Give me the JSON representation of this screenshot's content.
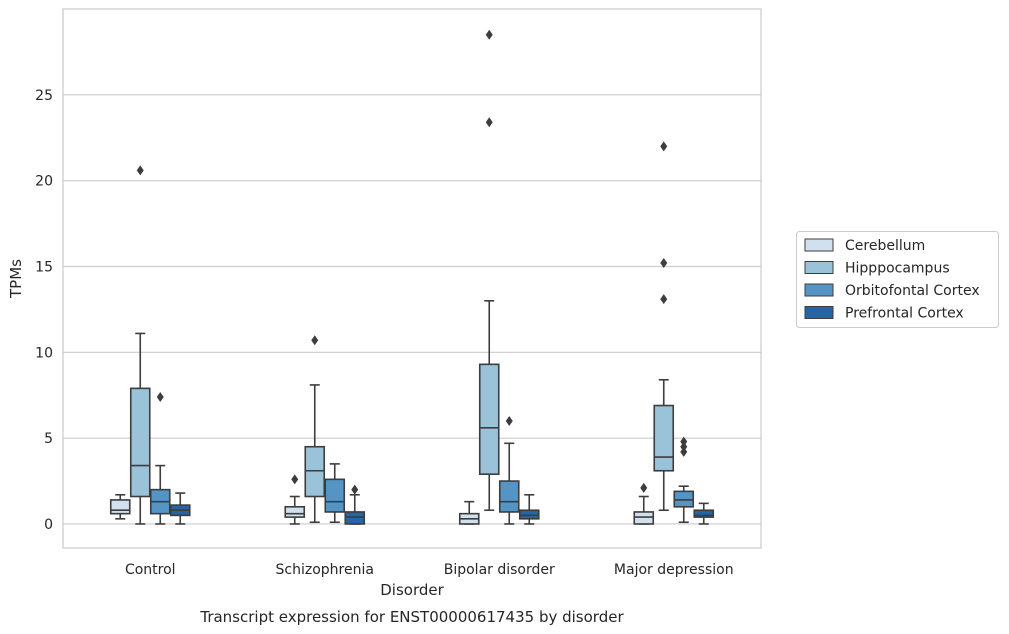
{
  "chart_data": {
    "type": "boxplot",
    "title": "Transcript expression for ENST00000617435 by disorder",
    "xlabel": "Disorder",
    "ylabel": "TPMs",
    "ylim": [
      -1.4,
      30.0
    ],
    "yticks": [
      0,
      5,
      10,
      15,
      20,
      25
    ],
    "grid": "horizontal",
    "legend_position": "right",
    "categories": [
      "Control",
      "Schizophrenia",
      "Bipolar disorder",
      "Major depression"
    ],
    "series": [
      {
        "name": "Cerebellum",
        "color": "#d1e0ee",
        "boxes": [
          {
            "whislo": 0.3,
            "q1": 0.6,
            "med": 0.8,
            "q3": 1.4,
            "whishi": 1.7,
            "fliers": []
          },
          {
            "whislo": 0.0,
            "q1": 0.4,
            "med": 0.6,
            "q3": 1.0,
            "whishi": 1.6,
            "fliers": [
              2.6
            ]
          },
          {
            "whislo": 0.0,
            "q1": 0.0,
            "med": 0.3,
            "q3": 0.6,
            "whishi": 1.3,
            "fliers": []
          },
          {
            "whislo": 0.0,
            "q1": 0.0,
            "med": 0.4,
            "q3": 0.7,
            "whishi": 1.6,
            "fliers": [
              2.1
            ]
          }
        ]
      },
      {
        "name": "Hipppocampus",
        "color": "#9ac2d9",
        "boxes": [
          {
            "whislo": 0.0,
            "q1": 1.6,
            "med": 3.4,
            "q3": 7.9,
            "whishi": 11.1,
            "fliers": [
              20.6
            ]
          },
          {
            "whislo": 0.1,
            "q1": 1.6,
            "med": 3.1,
            "q3": 4.5,
            "whishi": 8.1,
            "fliers": [
              10.7
            ]
          },
          {
            "whislo": 0.8,
            "q1": 2.9,
            "med": 5.6,
            "q3": 9.3,
            "whishi": 13.0,
            "fliers": [
              23.4,
              28.5
            ]
          },
          {
            "whislo": 0.8,
            "q1": 3.1,
            "med": 3.9,
            "q3": 6.9,
            "whishi": 8.4,
            "fliers": [
              13.1,
              15.2,
              22.0
            ]
          }
        ]
      },
      {
        "name": "Orbitofontal Cortex",
        "color": "#5595c5",
        "boxes": [
          {
            "whislo": 0.0,
            "q1": 0.6,
            "med": 1.3,
            "q3": 2.0,
            "whishi": 3.4,
            "fliers": [
              7.4
            ]
          },
          {
            "whislo": 0.1,
            "q1": 0.7,
            "med": 1.3,
            "q3": 2.6,
            "whishi": 3.5,
            "fliers": []
          },
          {
            "whislo": 0.0,
            "q1": 0.7,
            "med": 1.3,
            "q3": 2.5,
            "whishi": 4.7,
            "fliers": [
              6.0
            ]
          },
          {
            "whislo": 0.1,
            "q1": 1.0,
            "med": 1.4,
            "q3": 1.9,
            "whishi": 2.2,
            "fliers": [
              4.2,
              4.5,
              4.8
            ]
          }
        ]
      },
      {
        "name": "Prefrontal Cortex",
        "color": "#2465a7",
        "boxes": [
          {
            "whislo": 0.0,
            "q1": 0.5,
            "med": 0.8,
            "q3": 1.1,
            "whishi": 1.8,
            "fliers": []
          },
          {
            "whislo": 0.0,
            "q1": 0.0,
            "med": 0.4,
            "q3": 0.7,
            "whishi": 1.7,
            "fliers": [
              2.0
            ]
          },
          {
            "whislo": 0.0,
            "q1": 0.3,
            "med": 0.5,
            "q3": 0.8,
            "whishi": 1.7,
            "fliers": []
          },
          {
            "whislo": 0.0,
            "q1": 0.4,
            "med": 0.5,
            "q3": 0.8,
            "whishi": 1.2,
            "fliers": []
          }
        ]
      }
    ]
  }
}
